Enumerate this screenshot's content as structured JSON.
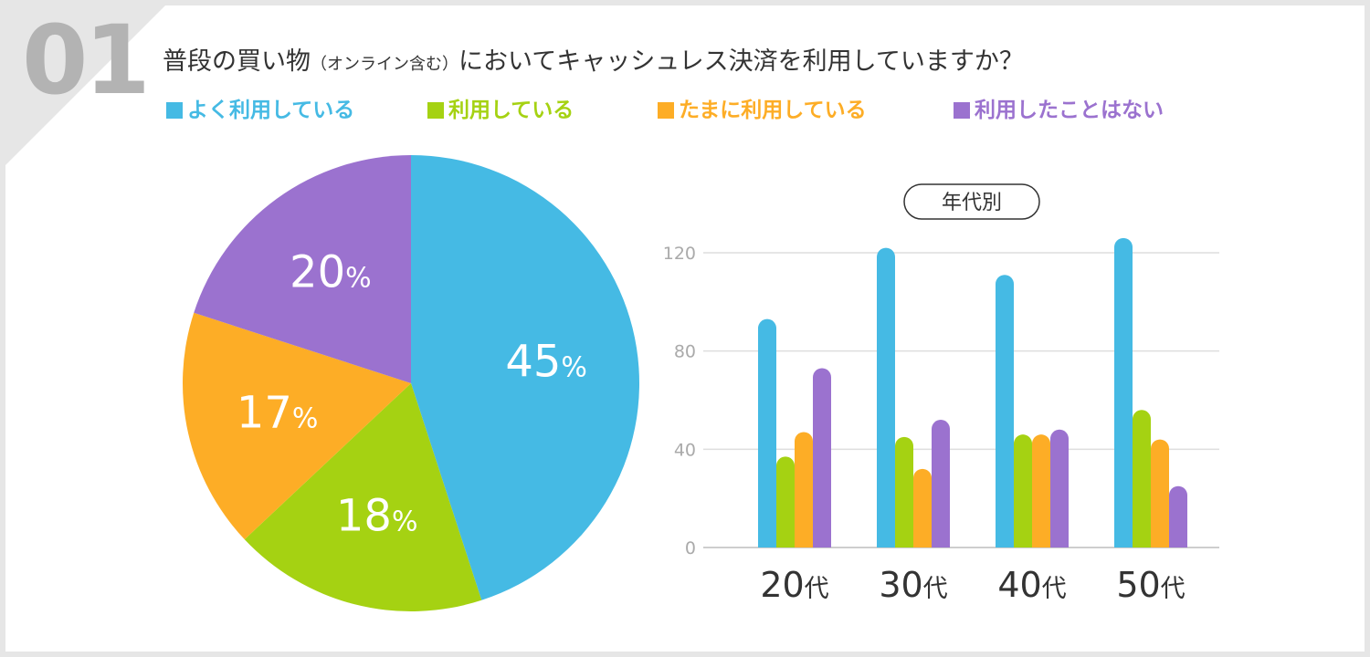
{
  "question_number": "01",
  "title": {
    "main1": "普段の買い物",
    "paren": "（オンライン含む）",
    "main2": "においてキャッシュレス決済を利用していますか？"
  },
  "colors": {
    "often": "#45bae4",
    "use": "#a5d212",
    "sometimes": "#fdad26",
    "never": "#9b72cf"
  },
  "legend": [
    {
      "label": "よく利用している",
      "color": "#45bae4"
    },
    {
      "label": "利用している",
      "color": "#a5d212"
    },
    {
      "label": "たまに利用している",
      "color": "#fdad26"
    },
    {
      "label": "利用したことはない",
      "color": "#9b72cf"
    }
  ],
  "chart_data": [
    {
      "type": "pie",
      "title": "",
      "slices": [
        {
          "label": "よく利用している",
          "value": 45,
          "display": "45",
          "color": "#45bae4"
        },
        {
          "label": "利用している",
          "value": 18,
          "display": "18",
          "color": "#a5d212"
        },
        {
          "label": "たまに利用している",
          "value": 17,
          "display": "17",
          "color": "#fdad26"
        },
        {
          "label": "利用したことはない",
          "value": 20,
          "display": "20",
          "color": "#9b72cf"
        }
      ],
      "unit": "%"
    },
    {
      "type": "bar",
      "title": "年代別",
      "categories": [
        {
          "num": "20",
          "suffix": "代"
        },
        {
          "num": "30",
          "suffix": "代"
        },
        {
          "num": "40",
          "suffix": "代"
        },
        {
          "num": "50",
          "suffix": "代"
        }
      ],
      "series": [
        {
          "name": "よく利用している",
          "color": "#45bae4",
          "values": [
            93,
            122,
            111,
            126
          ]
        },
        {
          "name": "利用している",
          "color": "#a5d212",
          "values": [
            37,
            45,
            46,
            56
          ]
        },
        {
          "name": "たまに利用している",
          "color": "#fdad26",
          "values": [
            47,
            32,
            46,
            44
          ]
        },
        {
          "name": "利用したことはない",
          "color": "#9b72cf",
          "values": [
            73,
            52,
            48,
            25
          ]
        }
      ],
      "yticks": [
        "0",
        "40",
        "80",
        "120"
      ],
      "ylim": [
        0,
        120
      ],
      "grid": true
    }
  ]
}
